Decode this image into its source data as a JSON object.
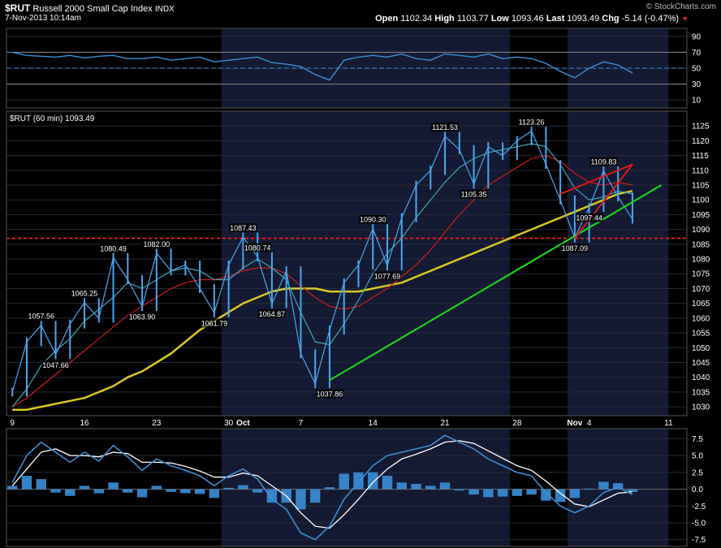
{
  "header": {
    "symbol": "$RUT",
    "name": "Russell 2000 Small Cap Index",
    "exchange": "INDX",
    "datetime": "7-Nov-2013 10:14am",
    "open_label": "Open",
    "open": "1102.34",
    "high_label": "High",
    "high": "1103.77",
    "low_label": "Low",
    "low": "1093.46",
    "last_label": "Last",
    "last": "1093.49",
    "chg_label": "Chg",
    "chg": "-5.14 (-0.47%)",
    "watermark": "© StockCharts.com"
  },
  "colors": {
    "background": "#000000",
    "shade": "#141a33",
    "price": "#4aa8f0",
    "ma_short": "#3fa8b8",
    "ma_mid": "#d01c1c",
    "ma_long": "#d8c81e",
    "trend_green": "#18e018",
    "trend_red": "#e01818",
    "support_red": "#ff2020",
    "rsi": "#3a8fd8",
    "macd": "#3a8fd8",
    "signal": "#ffffff"
  },
  "chart_data": [
    {
      "type": "line",
      "panel": "rsi",
      "ylim": [
        0,
        100
      ],
      "yticks": [
        10,
        30,
        50,
        70,
        90
      ],
      "reference_levels": [
        30,
        50,
        70
      ],
      "x": [
        "Sep 9",
        "Sep 10",
        "Sep 11",
        "Sep 12",
        "Sep 13",
        "Sep 16",
        "Sep 17",
        "Sep 18",
        "Sep 19",
        "Sep 20",
        "Sep 23",
        "Sep 24",
        "Sep 25",
        "Sep 26",
        "Sep 27",
        "Sep 30",
        "Oct 1",
        "Oct 2",
        "Oct 3",
        "Oct 4",
        "Oct 7",
        "Oct 8",
        "Oct 9",
        "Oct 10",
        "Oct 11",
        "Oct 14",
        "Oct 15",
        "Oct 16",
        "Oct 17",
        "Oct 18",
        "Oct 21",
        "Oct 22",
        "Oct 23",
        "Oct 24",
        "Oct 25",
        "Oct 28",
        "Oct 29",
        "Oct 30",
        "Oct 31",
        "Nov 1",
        "Nov 4",
        "Nov 5",
        "Nov 6",
        "Nov 7"
      ],
      "y": [
        70,
        66,
        65,
        64,
        66,
        63,
        65,
        66,
        62,
        62,
        64,
        60,
        62,
        64,
        58,
        60,
        62,
        64,
        57,
        55,
        52,
        42,
        35,
        60,
        64,
        66,
        64,
        68,
        62,
        60,
        68,
        66,
        64,
        68,
        62,
        64,
        62,
        56,
        46,
        38,
        50,
        58,
        54,
        44
      ]
    },
    {
      "type": "line",
      "panel": "price",
      "title": "$RUT (60 min) 1093.49",
      "ylim": [
        1027,
        1130
      ],
      "yticks": [
        1030,
        1035,
        1040,
        1045,
        1050,
        1055,
        1060,
        1065,
        1070,
        1075,
        1080,
        1085,
        1090,
        1095,
        1100,
        1105,
        1110,
        1115,
        1120,
        1125
      ],
      "xticks": [
        "9",
        "16",
        "23",
        "30",
        "Oct",
        "7",
        "14",
        "21",
        "28",
        "Nov",
        "4",
        "11"
      ],
      "x": [
        "Sep 9",
        "Sep 10",
        "Sep 11",
        "Sep 12",
        "Sep 13",
        "Sep 16",
        "Sep 17",
        "Sep 18",
        "Sep 19",
        "Sep 20",
        "Sep 23",
        "Sep 24",
        "Sep 25",
        "Sep 26",
        "Sep 27",
        "Sep 30",
        "Oct 1",
        "Oct 2",
        "Oct 3",
        "Oct 4",
        "Oct 7",
        "Oct 8",
        "Oct 9",
        "Oct 10",
        "Oct 11",
        "Oct 14",
        "Oct 15",
        "Oct 16",
        "Oct 17",
        "Oct 18",
        "Oct 21",
        "Oct 22",
        "Oct 23",
        "Oct 24",
        "Oct 25",
        "Oct 28",
        "Oct 29",
        "Oct 30",
        "Oct 31",
        "Nov 1",
        "Nov 4",
        "Nov 5",
        "Nov 6",
        "Nov 7"
      ],
      "series": [
        {
          "role": "price",
          "values": [
            1035,
            1052,
            1057.56,
            1047.66,
            1058,
            1065.25,
            1060,
            1080.49,
            1073,
            1063.9,
            1082,
            1076,
            1078,
            1070,
            1061.79,
            1078,
            1087.43,
            1080.74,
            1064.87,
            1076,
            1048,
            1037.86,
            1056,
            1072,
            1078,
            1090.3,
            1077.69,
            1094,
            1105,
            1110,
            1121.53,
            1117,
            1105.35,
            1118,
            1115,
            1120,
            1123.26,
            1112,
            1100,
            1087.09,
            1097.44,
            1109.83,
            1101,
            1093.49
          ]
        },
        {
          "role": "ma_short",
          "values": [
            1030,
            1036,
            1044,
            1049,
            1053,
            1059,
            1063,
            1067,
            1072,
            1070,
            1073,
            1076,
            1077,
            1076,
            1073,
            1073,
            1077,
            1080,
            1077,
            1073,
            1062,
            1052,
            1051,
            1058,
            1066,
            1075,
            1082,
            1087,
            1094,
            1100,
            1106,
            1111,
            1114,
            1116,
            1117,
            1118,
            1119,
            1118,
            1112,
            1104,
            1100,
            1101,
            1103,
            1102
          ]
        },
        {
          "role": "ma_mid",
          "values": [
            1030,
            1033,
            1037,
            1041,
            1045,
            1049,
            1053,
            1057,
            1061,
            1064,
            1067,
            1070,
            1072,
            1073,
            1073,
            1074,
            1076,
            1077,
            1077,
            1075,
            1071,
            1067,
            1064,
            1063,
            1064,
            1067,
            1070,
            1074,
            1078,
            1083,
            1089,
            1095,
            1100,
            1105,
            1108,
            1111,
            1114,
            1115,
            1113,
            1109,
            1106,
            1105,
            1106,
            1105
          ]
        },
        {
          "role": "ma_long",
          "values": [
            1029,
            1029,
            1030,
            1031,
            1032,
            1033,
            1035,
            1037,
            1040,
            1042,
            1045,
            1048,
            1052,
            1056,
            1059,
            1062,
            1065,
            1067,
            1069,
            1070,
            1070,
            1070,
            1069,
            1069,
            1069,
            1070,
            1071,
            1072,
            1074,
            1076,
            1078,
            1080,
            1082,
            1084,
            1086,
            1088,
            1090,
            1092,
            1094,
            1096,
            1098,
            1100,
            1102,
            1103
          ]
        }
      ],
      "annotations": [
        {
          "x": "Sep 11",
          "y": 1057.56,
          "text": "1057.56"
        },
        {
          "x": "Sep 12",
          "y": 1047.66,
          "text": "1047.66"
        },
        {
          "x": "Sep 16",
          "y": 1065.25,
          "text": "1065.25"
        },
        {
          "x": "Sep 18",
          "y": 1080.49,
          "text": "1080.49"
        },
        {
          "x": "Sep 20",
          "y": 1063.9,
          "text": "1063.90"
        },
        {
          "x": "Sep 23",
          "y": 1082.0,
          "text": "1082.00"
        },
        {
          "x": "Sep 27",
          "y": 1061.79,
          "text": "1061.79"
        },
        {
          "x": "Oct 1",
          "y": 1087.43,
          "text": "1087.43"
        },
        {
          "x": "Oct 2",
          "y": 1080.74,
          "text": "1080.74"
        },
        {
          "x": "Oct 3",
          "y": 1064.87,
          "text": "1064.87"
        },
        {
          "x": "Oct 9",
          "y": 1037.86,
          "text": "1037.86"
        },
        {
          "x": "Oct 14",
          "y": 1090.3,
          "text": "1090.30"
        },
        {
          "x": "Oct 15",
          "y": 1077.69,
          "text": "1077.69"
        },
        {
          "x": "Oct 21",
          "y": 1121.53,
          "text": "1121.53"
        },
        {
          "x": "Oct 23",
          "y": 1105.35,
          "text": "1105.35"
        },
        {
          "x": "Oct 29",
          "y": 1123.26,
          "text": "1123.26"
        },
        {
          "x": "Nov 1",
          "y": 1087.09,
          "text": "1087.09"
        },
        {
          "x": "Nov 4",
          "y": 1097.44,
          "text": "1097.44"
        },
        {
          "x": "Nov 5",
          "y": 1109.83,
          "text": "1109.83"
        }
      ],
      "horizontal_line": 1087,
      "trendlines": [
        {
          "color": "green",
          "from": {
            "x": "Oct 9",
            "y": 1039
          },
          "to": {
            "x": "Nov 10",
            "y": 1105
          }
        },
        {
          "color": "red",
          "from": {
            "x": "Oct 31",
            "y": 1102
          },
          "to": {
            "x": "Nov 7",
            "y": 1112
          }
        },
        {
          "color": "red",
          "from": {
            "x": "Nov 1",
            "y": 1087
          },
          "to": {
            "x": "Nov 7",
            "y": 1112
          }
        }
      ]
    },
    {
      "type": "bar",
      "panel": "macd",
      "ylim": [
        -8.5,
        9
      ],
      "yticks": [
        -7.5,
        -5.0,
        -2.5,
        0.0,
        2.5,
        5.0,
        7.5
      ],
      "x": [
        "Sep 9",
        "Sep 10",
        "Sep 11",
        "Sep 12",
        "Sep 13",
        "Sep 16",
        "Sep 17",
        "Sep 18",
        "Sep 19",
        "Sep 20",
        "Sep 23",
        "Sep 24",
        "Sep 25",
        "Sep 26",
        "Sep 27",
        "Sep 30",
        "Oct 1",
        "Oct 2",
        "Oct 3",
        "Oct 4",
        "Oct 7",
        "Oct 8",
        "Oct 9",
        "Oct 10",
        "Oct 11",
        "Oct 14",
        "Oct 15",
        "Oct 16",
        "Oct 17",
        "Oct 18",
        "Oct 21",
        "Oct 22",
        "Oct 23",
        "Oct 24",
        "Oct 25",
        "Oct 28",
        "Oct 29",
        "Oct 30",
        "Oct 31",
        "Nov 1",
        "Nov 4",
        "Nov 5",
        "Nov 6",
        "Nov 7"
      ],
      "series": [
        {
          "role": "macd",
          "values": [
            1.0,
            5.0,
            7.0,
            5.5,
            4.0,
            5.5,
            4.2,
            6.5,
            4.8,
            2.8,
            4.5,
            3.5,
            2.8,
            2.0,
            0.5,
            2.0,
            3.0,
            1.5,
            -1.5,
            -3.0,
            -6.5,
            -7.5,
            -5.5,
            -1.5,
            1.0,
            3.5,
            5.0,
            5.5,
            6.0,
            6.5,
            8.0,
            7.0,
            6.0,
            4.5,
            3.5,
            2.5,
            2.0,
            -0.5,
            -2.5,
            -3.5,
            -2.5,
            -0.5,
            0.3,
            -0.8
          ]
        },
        {
          "role": "signal",
          "values": [
            0.5,
            3.0,
            5.5,
            6.0,
            5.0,
            5.0,
            4.8,
            5.5,
            5.3,
            4.0,
            4.0,
            3.9,
            3.4,
            2.7,
            1.8,
            1.8,
            2.4,
            2.0,
            0.5,
            -1.0,
            -3.5,
            -5.5,
            -5.8,
            -3.8,
            -1.5,
            1.0,
            3.0,
            4.5,
            5.2,
            6.0,
            7.0,
            7.2,
            6.8,
            5.7,
            4.6,
            3.5,
            2.8,
            1.2,
            -0.6,
            -2.2,
            -2.6,
            -1.6,
            -0.6,
            -0.4
          ]
        },
        {
          "role": "histogram",
          "values": [
            0.5,
            2.0,
            1.5,
            -0.5,
            -1.0,
            0.5,
            -0.6,
            1.0,
            -0.5,
            -1.2,
            0.5,
            -0.4,
            -0.6,
            -0.7,
            -1.3,
            0.2,
            0.6,
            -0.5,
            -2.0,
            -2.0,
            -3.0,
            -2.0,
            0.3,
            2.3,
            2.5,
            2.5,
            2.0,
            1.0,
            0.8,
            0.5,
            1.0,
            -0.2,
            -0.8,
            -1.2,
            -1.1,
            -1.0,
            -0.8,
            -1.7,
            -1.9,
            -1.3,
            0.1,
            1.1,
            0.9,
            -0.4
          ]
        }
      ]
    }
  ]
}
